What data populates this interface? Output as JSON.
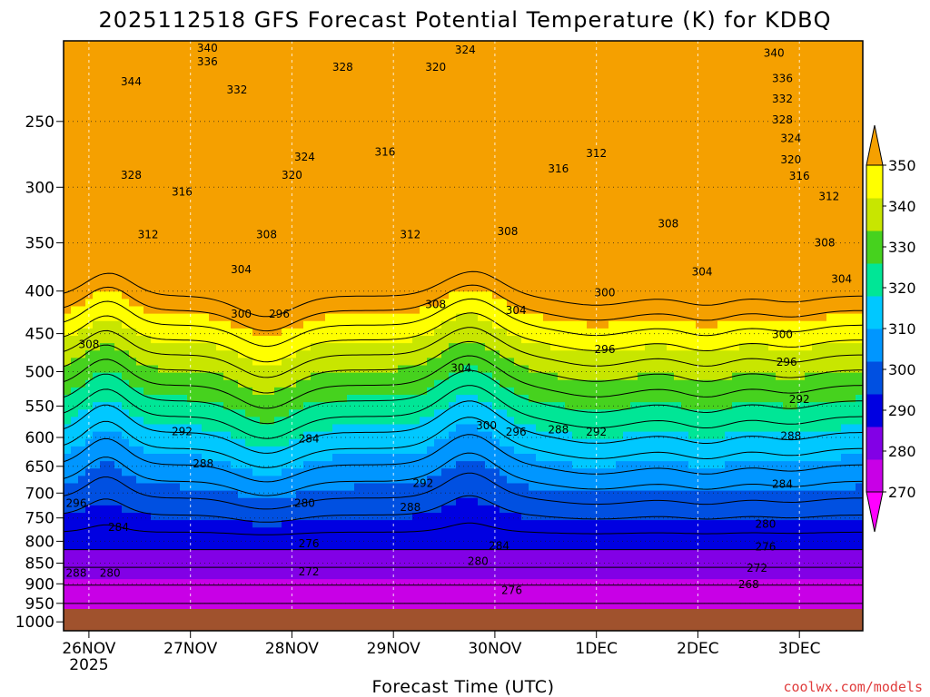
{
  "chart_data": {
    "type": "heatmap",
    "title": "2025112518 GFS Forecast Potential Temperature (K) for KDBQ",
    "xlabel": "Forecast Time (UTC)",
    "ylabel": "",
    "watermark": "coolwx.com/models",
    "x_ticks": [
      "26NOV",
      "27NOV",
      "28NOV",
      "29NOV",
      "30NOV",
      "1DEC",
      "2DEC",
      "3DEC"
    ],
    "x_tick_sub": "2025",
    "x_range_hours": [
      0,
      189
    ],
    "x_tick_hours": [
      6,
      30,
      54,
      78,
      102,
      126,
      150,
      174
    ],
    "y_ticks": [
      250,
      300,
      350,
      400,
      450,
      500,
      550,
      600,
      650,
      700,
      750,
      800,
      850,
      900,
      950,
      1000
    ],
    "y_range_hPa": [
      200,
      1025
    ],
    "colorbar": {
      "levels": [
        270,
        280,
        290,
        300,
        310,
        320,
        330,
        340,
        350
      ],
      "colors": [
        "#ff00ff",
        "#c800e6",
        "#8200e6",
        "#0000e1",
        "#0050e1",
        "#0096ff",
        "#00c8ff",
        "#00e696",
        "#46d21e",
        "#c8e600",
        "#ffff00",
        "#f5a000"
      ]
    },
    "contour_labels": [
      {
        "text": "344",
        "h": 16,
        "p": 224
      },
      {
        "text": "340",
        "h": 34,
        "p": 204
      },
      {
        "text": "336",
        "h": 34,
        "p": 212
      },
      {
        "text": "332",
        "h": 41,
        "p": 229
      },
      {
        "text": "328",
        "h": 16,
        "p": 290
      },
      {
        "text": "316",
        "h": 28,
        "p": 304
      },
      {
        "text": "312",
        "h": 20,
        "p": 342
      },
      {
        "text": "308",
        "h": 6,
        "p": 464
      },
      {
        "text": "324",
        "h": 57,
        "p": 276
      },
      {
        "text": "320",
        "h": 54,
        "p": 290
      },
      {
        "text": "328",
        "h": 66,
        "p": 215
      },
      {
        "text": "316",
        "h": 76,
        "p": 272
      },
      {
        "text": "320",
        "h": 88,
        "p": 215
      },
      {
        "text": "324",
        "h": 95,
        "p": 205
      },
      {
        "text": "308",
        "h": 48,
        "p": 342
      },
      {
        "text": "304",
        "h": 42,
        "p": 377
      },
      {
        "text": "300",
        "h": 42,
        "p": 426
      },
      {
        "text": "296",
        "h": 51,
        "p": 426
      },
      {
        "text": "312",
        "h": 82,
        "p": 342
      },
      {
        "text": "308",
        "h": 88,
        "p": 415
      },
      {
        "text": "304",
        "h": 94,
        "p": 495
      },
      {
        "text": "300",
        "h": 100,
        "p": 581
      },
      {
        "text": "296",
        "h": 107,
        "p": 591
      },
      {
        "text": "308",
        "h": 105,
        "p": 339
      },
      {
        "text": "304",
        "h": 107,
        "p": 422
      },
      {
        "text": "316",
        "h": 117,
        "p": 285
      },
      {
        "text": "312",
        "h": 126,
        "p": 273
      },
      {
        "text": "300",
        "h": 128,
        "p": 402
      },
      {
        "text": "296",
        "h": 128,
        "p": 470
      },
      {
        "text": "288",
        "h": 117,
        "p": 587
      },
      {
        "text": "292",
        "h": 126,
        "p": 591
      },
      {
        "text": "308",
        "h": 143,
        "p": 332
      },
      {
        "text": "304",
        "h": 151,
        "p": 379
      },
      {
        "text": "340",
        "h": 168,
        "p": 207
      },
      {
        "text": "336",
        "h": 170,
        "p": 222
      },
      {
        "text": "332",
        "h": 170,
        "p": 235
      },
      {
        "text": "328",
        "h": 170,
        "p": 249
      },
      {
        "text": "324",
        "h": 172,
        "p": 262
      },
      {
        "text": "320",
        "h": 172,
        "p": 278
      },
      {
        "text": "316",
        "h": 174,
        "p": 291
      },
      {
        "text": "312",
        "h": 181,
        "p": 308
      },
      {
        "text": "308",
        "h": 180,
        "p": 350
      },
      {
        "text": "304",
        "h": 184,
        "p": 387
      },
      {
        "text": "300",
        "h": 170,
        "p": 451
      },
      {
        "text": "296",
        "h": 171,
        "p": 487
      },
      {
        "text": "292",
        "h": 174,
        "p": 540
      },
      {
        "text": "288",
        "h": 172,
        "p": 598
      },
      {
        "text": "284",
        "h": 170,
        "p": 683
      },
      {
        "text": "280",
        "h": 166,
        "p": 763
      },
      {
        "text": "276",
        "h": 166,
        "p": 812
      },
      {
        "text": "272",
        "h": 164,
        "p": 862
      },
      {
        "text": "268",
        "h": 162,
        "p": 902
      },
      {
        "text": "292",
        "h": 28,
        "p": 590
      },
      {
        "text": "288",
        "h": 33,
        "p": 645
      },
      {
        "text": "296",
        "h": 3,
        "p": 720
      },
      {
        "text": "284",
        "h": 13,
        "p": 770
      },
      {
        "text": "288",
        "h": 3,
        "p": 874
      },
      {
        "text": "280",
        "h": 11,
        "p": 874
      },
      {
        "text": "284",
        "h": 58,
        "p": 602
      },
      {
        "text": "280",
        "h": 57,
        "p": 720
      },
      {
        "text": "276",
        "h": 58,
        "p": 805
      },
      {
        "text": "272",
        "h": 58,
        "p": 870
      },
      {
        "text": "292",
        "h": 85,
        "p": 681
      },
      {
        "text": "288",
        "h": 82,
        "p": 728
      },
      {
        "text": "284",
        "h": 103,
        "p": 810
      },
      {
        "text": "280",
        "h": 98,
        "p": 846
      },
      {
        "text": "276",
        "h": 106,
        "p": 917
      }
    ]
  }
}
